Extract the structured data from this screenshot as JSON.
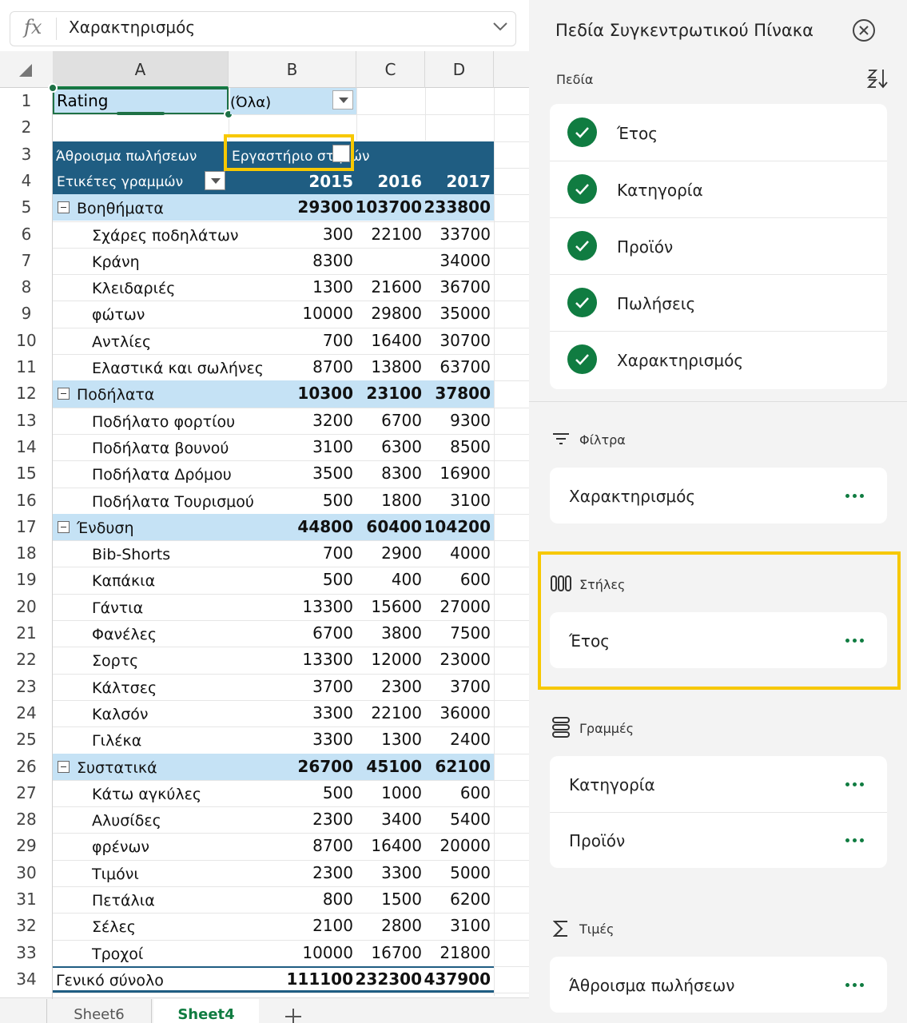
{
  "formula_bar": {
    "label": "fx",
    "value": "Χαρακτηρισμός"
  },
  "columns": [
    "A",
    "B",
    "C",
    "D"
  ],
  "row_numbers": [
    1,
    2,
    3,
    4,
    5,
    6,
    7,
    8,
    9,
    10,
    11,
    12,
    13,
    14,
    15,
    16,
    17,
    18,
    19,
    20,
    21,
    22,
    23,
    24,
    25,
    26,
    27,
    28,
    29,
    30,
    31,
    32,
    33,
    34
  ],
  "filter_cell": {
    "field": "Rating",
    "value": "(Όλα)"
  },
  "pivot": {
    "value_header": "Άθροισμα πωλήσεων",
    "column_header": "Εργαστήριο στηλών",
    "row_header": "Ετικέτες γραμμών",
    "years": [
      2015,
      2016,
      2017
    ],
    "rows": [
      {
        "label": "Βοηθήματα",
        "group": true,
        "values": [
          29300,
          103700,
          233800
        ]
      },
      {
        "label": "Σχάρες ποδηλάτων",
        "values": [
          300,
          22100,
          33700
        ]
      },
      {
        "label": "Κράνη",
        "values": [
          8300,
          null,
          34000
        ]
      },
      {
        "label": "Κλειδαριές",
        "values": [
          1300,
          21600,
          36700
        ]
      },
      {
        "label": "φώτων",
        "values": [
          10000,
          29800,
          35000
        ]
      },
      {
        "label": "Αντλίες",
        "values": [
          700,
          16400,
          30700
        ]
      },
      {
        "label": "Ελαστικά και σωλήνες",
        "values": [
          8700,
          13800,
          63700
        ]
      },
      {
        "label": "Ποδήλατα",
        "group": true,
        "values": [
          10300,
          23100,
          37800
        ]
      },
      {
        "label": "Ποδήλατο φορτίου",
        "values": [
          3200,
          6700,
          9300
        ]
      },
      {
        "label": "Ποδήλατα βουνού",
        "values": [
          3100,
          6300,
          8500
        ]
      },
      {
        "label": "Ποδήλατα Δρόμου",
        "values": [
          3500,
          8300,
          16900
        ]
      },
      {
        "label": "Ποδήλατα Τουρισμού",
        "values": [
          500,
          1800,
          3100
        ]
      },
      {
        "label": "Ένδυση",
        "group": true,
        "values": [
          44800,
          60400,
          104200
        ]
      },
      {
        "label": "Bib-Shorts",
        "values": [
          700,
          2900,
          4000
        ]
      },
      {
        "label": "Καπάκια",
        "values": [
          500,
          400,
          600
        ]
      },
      {
        "label": "Γάντια",
        "values": [
          13300,
          15600,
          27000
        ]
      },
      {
        "label": "Φανέλες",
        "values": [
          6700,
          3800,
          7500
        ]
      },
      {
        "label": "Σορτς",
        "values": [
          13300,
          12000,
          23000
        ]
      },
      {
        "label": "Κάλτσες",
        "values": [
          3700,
          2300,
          3700
        ]
      },
      {
        "label": "Καλσόν",
        "values": [
          3300,
          22100,
          36000
        ]
      },
      {
        "label": "Γιλέκα",
        "values": [
          3300,
          1300,
          2400
        ]
      },
      {
        "label": "Συστατικά",
        "group": true,
        "values": [
          26700,
          45100,
          62100
        ]
      },
      {
        "label": "Κάτω αγκύλες",
        "values": [
          500,
          1000,
          600
        ]
      },
      {
        "label": "Αλυσίδες",
        "values": [
          2300,
          3400,
          5400
        ]
      },
      {
        "label": "φρένων",
        "values": [
          8700,
          16400,
          20000
        ]
      },
      {
        "label": "Τιμόνι",
        "values": [
          2300,
          3300,
          5000
        ]
      },
      {
        "label": "Πετάλια",
        "values": [
          800,
          1500,
          6200
        ]
      },
      {
        "label": "Σέλες",
        "values": [
          2100,
          2800,
          3100
        ]
      },
      {
        "label": "Τροχοί",
        "values": [
          10000,
          16700,
          21800
        ]
      }
    ],
    "total": {
      "label": "Γενικό σύνολο",
      "values": [
        111100,
        232300,
        437900
      ]
    }
  },
  "sheet_tabs": [
    "Sheet6",
    "Sheet4"
  ],
  "panel": {
    "title": "Πεδία Συγκεντρωτικού Πίνακα",
    "fields_label": "Πεδία",
    "fields": [
      "Έτος",
      "Κατηγορία",
      "Προϊόν",
      "Πωλήσεις",
      "Χαρακτηρισμός"
    ],
    "filters": {
      "title": "Φίλτρα",
      "items": [
        "Χαρακτηρισμός"
      ]
    },
    "columns": {
      "title": "Στήλες",
      "items": [
        "Έτος"
      ]
    },
    "rows": {
      "title": "Γραμμές",
      "items": [
        "Κατηγορία",
        "Προϊόν"
      ]
    },
    "values": {
      "title": "Τιμές",
      "items": [
        "Άθροισμα πωλήσεων"
      ]
    }
  }
}
